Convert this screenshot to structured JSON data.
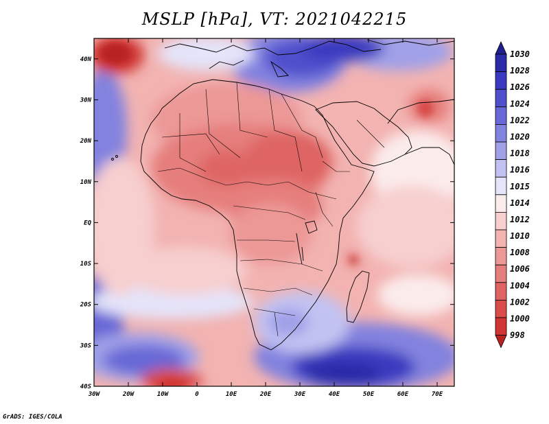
{
  "title": "MSLP [hPa], VT: 2021042215",
  "credit": "GrADS: IGES/COLA",
  "map": {
    "lon_range": [
      -30,
      75
    ],
    "lat_range": [
      -40,
      45
    ],
    "x_ticks": [
      "30W",
      "20W",
      "10W",
      "0",
      "10E",
      "20E",
      "30E",
      "40E",
      "50E",
      "60E",
      "70E"
    ],
    "y_ticks": [
      "40N",
      "30N",
      "20N",
      "10N",
      "EQ",
      "10S",
      "20S",
      "30S",
      "40S"
    ]
  },
  "colorbar": {
    "labels": [
      "1030",
      "1028",
      "1026",
      "1024",
      "1022",
      "1020",
      "1018",
      "1016",
      "1015",
      "1014",
      "1012",
      "1010",
      "1008",
      "1006",
      "1004",
      "1002",
      "1000",
      "998"
    ],
    "colors": [
      "#1f1f8f",
      "#2b2ba8",
      "#3a3ac0",
      "#5050cc",
      "#6868d6",
      "#8282df",
      "#a0a0e8",
      "#c2c2f2",
      "#e4e4fa",
      "#fbecec",
      "#f7cfcf",
      "#f2b3b1",
      "#ec9896",
      "#e57e7c",
      "#de6563",
      "#d84c4a",
      "#cf3533",
      "#b82222"
    ]
  }
}
